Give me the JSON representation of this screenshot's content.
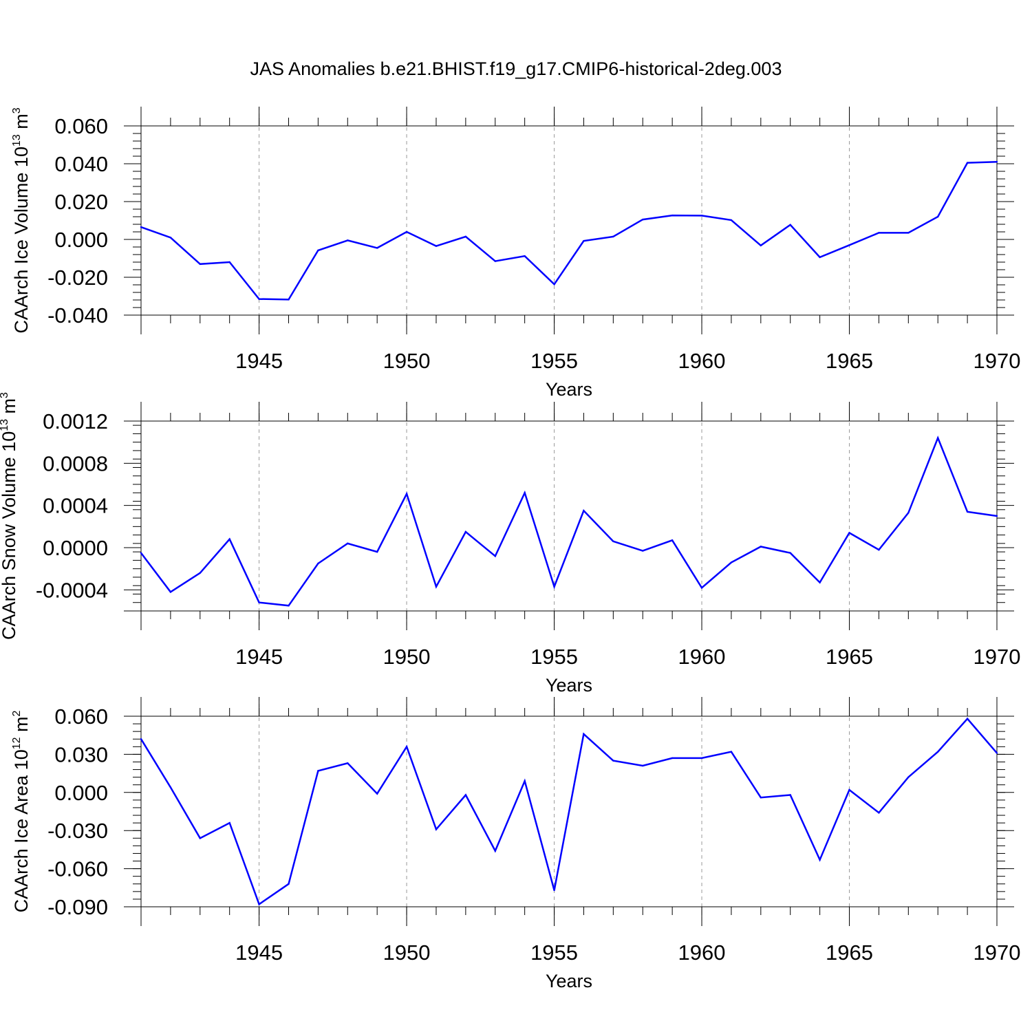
{
  "title": "JAS Anomalies b.e21.BHIST.f19_g17.CMIP6-historical-2deg.003",
  "line_color": "#0000ff",
  "axis_color": "#000000",
  "grid_color": "#999999",
  "chart_data": [
    {
      "type": "line",
      "ylabel_main": "CAArch Ice Volume 10",
      "ylabel_exp": "13",
      "ylabel_unit": " m",
      "ylabel_unit_exp": "3",
      "xlabel": "Years",
      "xlim": [
        1941,
        1970
      ],
      "ylim": [
        -0.04,
        0.06
      ],
      "xticks": [
        1945,
        1950,
        1955,
        1960,
        1965,
        1970
      ],
      "xtick_labels": [
        "1945",
        "1950",
        "1955",
        "1960",
        "1965",
        "1970"
      ],
      "yticks": [
        0.06,
        0.04,
        0.02,
        0.0,
        -0.02,
        -0.04
      ],
      "ytick_labels": [
        "0.060",
        "0.040",
        "0.020",
        "0.000",
        "-0.020",
        "-0.040"
      ],
      "x": [
        1941,
        1942,
        1943,
        1944,
        1945,
        1946,
        1947,
        1948,
        1949,
        1950,
        1951,
        1952,
        1953,
        1954,
        1955,
        1956,
        1957,
        1958,
        1959,
        1960,
        1961,
        1962,
        1963,
        1964,
        1965,
        1966,
        1967,
        1968,
        1969,
        1970
      ],
      "y": [
        0.0065,
        0.001,
        -0.013,
        -0.012,
        -0.0315,
        -0.0318,
        -0.0058,
        -0.0005,
        -0.0045,
        0.004,
        -0.0035,
        0.0015,
        -0.0115,
        -0.0088,
        -0.0237,
        -0.0008,
        0.0015,
        0.0105,
        0.0127,
        0.0126,
        0.0102,
        -0.0032,
        0.0077,
        -0.0094,
        -0.003,
        0.0035,
        0.0035,
        0.012,
        0.0405,
        0.041
      ]
    },
    {
      "type": "line",
      "ylabel_main": "CAArch Snow Volume 10",
      "ylabel_exp": "13",
      "ylabel_unit": " m",
      "ylabel_unit_exp": "3",
      "xlabel": "Years",
      "xlim": [
        1941,
        1970
      ],
      "ylim": [
        -0.0006,
        0.0012
      ],
      "xticks": [
        1945,
        1950,
        1955,
        1960,
        1965,
        1970
      ],
      "xtick_labels": [
        "1945",
        "1950",
        "1955",
        "1960",
        "1965",
        "1970"
      ],
      "yticks": [
        0.0012,
        0.0008,
        0.0004,
        0.0,
        -0.0004
      ],
      "ytick_labels": [
        "0.0012",
        "0.0008",
        "0.0004",
        "0.0000",
        "-0.0004"
      ],
      "x": [
        1941,
        1942,
        1943,
        1944,
        1945,
        1946,
        1947,
        1948,
        1949,
        1950,
        1951,
        1952,
        1953,
        1954,
        1955,
        1956,
        1957,
        1958,
        1959,
        1960,
        1961,
        1962,
        1963,
        1964,
        1965,
        1966,
        1967,
        1968,
        1969,
        1970
      ],
      "y": [
        -5e-05,
        -0.00042,
        -0.00024,
        8e-05,
        -0.00052,
        -0.00055,
        -0.00015,
        4e-05,
        -4e-05,
        0.00051,
        -0.00037,
        0.00015,
        -8e-05,
        0.00052,
        -0.00037,
        0.00035,
        6e-05,
        -3e-05,
        7e-05,
        -0.00038,
        -0.00014,
        1e-05,
        -5e-05,
        -0.00033,
        0.00014,
        -2e-05,
        0.00033,
        0.00104,
        0.00034,
        0.0003
      ]
    },
    {
      "type": "line",
      "ylabel_main": "CAArch Ice Area 10",
      "ylabel_exp": "12",
      "ylabel_unit": " m",
      "ylabel_unit_exp": "2",
      "xlabel": "Years",
      "xlim": [
        1941,
        1970
      ],
      "ylim": [
        -0.09,
        0.06
      ],
      "xticks": [
        1945,
        1950,
        1955,
        1960,
        1965,
        1970
      ],
      "xtick_labels": [
        "1945",
        "1950",
        "1955",
        "1960",
        "1965",
        "1970"
      ],
      "yticks": [
        0.06,
        0.03,
        0.0,
        -0.03,
        -0.06,
        -0.09
      ],
      "ytick_labels": [
        "0.060",
        "0.030",
        "0.000",
        "-0.030",
        "-0.060",
        "-0.090"
      ],
      "x": [
        1941,
        1942,
        1943,
        1944,
        1945,
        1946,
        1947,
        1948,
        1949,
        1950,
        1951,
        1952,
        1953,
        1954,
        1955,
        1956,
        1957,
        1958,
        1959,
        1960,
        1961,
        1962,
        1963,
        1964,
        1965,
        1966,
        1967,
        1968,
        1969,
        1970
      ],
      "y": [
        0.042,
        0.004,
        -0.036,
        -0.024,
        -0.088,
        -0.072,
        0.017,
        0.023,
        -0.001,
        0.036,
        -0.029,
        -0.002,
        -0.046,
        0.009,
        -0.077,
        0.046,
        0.025,
        0.021,
        0.027,
        0.027,
        0.032,
        -0.004,
        -0.002,
        -0.053,
        0.002,
        -0.016,
        0.012,
        0.032,
        0.058,
        0.031
      ]
    }
  ]
}
